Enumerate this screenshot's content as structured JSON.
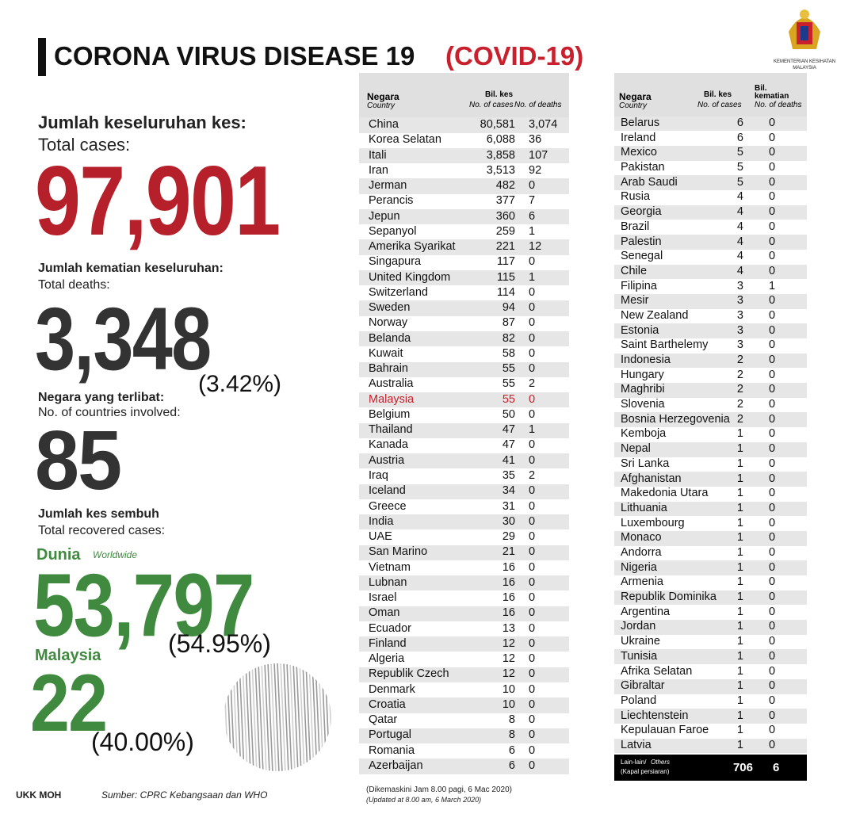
{
  "header": {
    "title": "CORONA VIRUS DISEASE 19",
    "title_highlight": "(COVID-19)",
    "ministry": [
      "KEMENTERIAN KESIHATAN",
      "MALAYSIA"
    ]
  },
  "total_cases": {
    "label_ms": "Jumlah keseluruhan kes:",
    "label_en": "Total cases:",
    "value": "97,901"
  },
  "total_deaths": {
    "label_ms": "Jumlah kematian keseluruhan:",
    "label_en": "Total deaths:",
    "value": "3,348",
    "percent": "(3.42%)"
  },
  "countries": {
    "label_ms": "Negara yang terlibat:",
    "label_en": "No. of countries involved:",
    "value": "85"
  },
  "recovered": {
    "label_ms": "Jumlah kes sembuh",
    "label_en": "Total recovered cases:",
    "world": {
      "label_ms": "Dunia",
      "label_en": "Worldwide",
      "value": "53,797",
      "percent": "(54.95%)"
    },
    "malaysia": {
      "label": "Malaysia",
      "value": "22",
      "percent": "(40.00%)"
    }
  },
  "tables": [
    {
      "header": {
        "country_ms": "Negara",
        "country_en": "Country",
        "cases_ms": "Bil. kes",
        "cases_en": "No. of cases",
        "deaths_en": "No. of deaths"
      },
      "highlight": {
        "row": 18,
        "color": "#c8202c"
      },
      "rows": [
        [
          "China",
          "80,581",
          "3,074"
        ],
        [
          "Korea Selatan",
          "6,088",
          "36"
        ],
        [
          "Itali",
          "3,858",
          "107"
        ],
        [
          "Iran",
          "3,513",
          "92"
        ],
        [
          "Jerman",
          "482",
          "0"
        ],
        [
          "Perancis",
          "377",
          "7"
        ],
        [
          "Jepun",
          "360",
          "6"
        ],
        [
          "Sepanyol",
          "259",
          "1"
        ],
        [
          "Amerika Syarikat",
          "221",
          "12"
        ],
        [
          "Singapura",
          "117",
          "0"
        ],
        [
          "United Kingdom",
          "115",
          "1"
        ],
        [
          "Switzerland",
          "114",
          "0"
        ],
        [
          "Sweden",
          "94",
          "0"
        ],
        [
          "Norway",
          "87",
          "0"
        ],
        [
          "Belanda",
          "82",
          "0"
        ],
        [
          "Kuwait",
          "58",
          "0"
        ],
        [
          "Bahrain",
          "55",
          "0"
        ],
        [
          "Australia",
          "55",
          "2"
        ],
        [
          "Malaysia",
          "55",
          "0"
        ],
        [
          "Belgium",
          "50",
          "0"
        ],
        [
          "Thailand",
          "47",
          "1"
        ],
        [
          "Kanada",
          "47",
          "0"
        ],
        [
          "Austria",
          "41",
          "0"
        ],
        [
          "Iraq",
          "35",
          "2"
        ],
        [
          "Iceland",
          "34",
          "0"
        ],
        [
          "Greece",
          "31",
          "0"
        ],
        [
          "India",
          "30",
          "0"
        ],
        [
          "UAE",
          "29",
          "0"
        ],
        [
          "San Marino",
          "21",
          "0"
        ],
        [
          "Vietnam",
          "16",
          "0"
        ],
        [
          "Lubnan",
          "16",
          "0"
        ],
        [
          "Israel",
          "16",
          "0"
        ],
        [
          "Oman",
          "16",
          "0"
        ],
        [
          "Ecuador",
          "13",
          "0"
        ],
        [
          "Finland",
          "12",
          "0"
        ],
        [
          "Algeria",
          "12",
          "0"
        ],
        [
          "Republik Czech",
          "12",
          "0"
        ],
        [
          "Denmark",
          "10",
          "0"
        ],
        [
          "Croatia",
          "10",
          "0"
        ],
        [
          "Qatar",
          "8",
          "0"
        ],
        [
          "Portugal",
          "8",
          "0"
        ],
        [
          "Romania",
          "6",
          "0"
        ],
        [
          "Azerbaijan",
          "6",
          "0"
        ]
      ]
    },
    {
      "header": {
        "country_ms": "Negara",
        "country_en": "Country",
        "cases_ms": "Bil. kes",
        "cases_en": "No. of cases",
        "deaths_ms": "Bil. kematian",
        "deaths_en": "No. of deaths"
      },
      "rows": [
        [
          "Belarus",
          "6",
          "0"
        ],
        [
          "Ireland",
          "6",
          "0"
        ],
        [
          "Mexico",
          "5",
          "0"
        ],
        [
          "Pakistan",
          "5",
          "0"
        ],
        [
          "Arab Saudi",
          "5",
          "0"
        ],
        [
          "Rusia",
          "4",
          "0"
        ],
        [
          "Georgia",
          "4",
          "0"
        ],
        [
          "Brazil",
          "4",
          "0"
        ],
        [
          "Palestin",
          "4",
          "0"
        ],
        [
          "Senegal",
          "4",
          "0"
        ],
        [
          "Chile",
          "4",
          "0"
        ],
        [
          "Filipina",
          "3",
          "1"
        ],
        [
          "Mesir",
          "3",
          "0"
        ],
        [
          "New Zealand",
          "3",
          "0"
        ],
        [
          "Estonia",
          "3",
          "0"
        ],
        [
          "Saint Barthelemy",
          "3",
          "0"
        ],
        [
          "Indonesia",
          "2",
          "0"
        ],
        [
          "Hungary",
          "2",
          "0"
        ],
        [
          "Maghribi",
          "2",
          "0"
        ],
        [
          "Slovenia",
          "2",
          "0"
        ],
        [
          "Bosnia Herzegovenia",
          "2",
          "0"
        ],
        [
          "Kemboja",
          "1",
          "0"
        ],
        [
          "Nepal",
          "1",
          "0"
        ],
        [
          "Sri Lanka",
          "1",
          "0"
        ],
        [
          "Afghanistan",
          "1",
          "0"
        ],
        [
          "Makedonia Utara",
          "1",
          "0"
        ],
        [
          "Lithuania",
          "1",
          "0"
        ],
        [
          "Luxembourg",
          "1",
          "0"
        ],
        [
          "Monaco",
          "1",
          "0"
        ],
        [
          "Andorra",
          "1",
          "0"
        ],
        [
          "Nigeria",
          "1",
          "0"
        ],
        [
          "Armenia",
          "1",
          "0"
        ],
        [
          "Republik Dominika",
          "1",
          "0"
        ],
        [
          "Argentina",
          "1",
          "0"
        ],
        [
          "Jordan",
          "1",
          "0"
        ],
        [
          "Ukraine",
          "1",
          "0"
        ],
        [
          "Tunisia",
          "1",
          "0"
        ],
        [
          "Afrika Selatan",
          "1",
          "0"
        ],
        [
          "Gibraltar",
          "1",
          "0"
        ],
        [
          "Poland",
          "1",
          "0"
        ],
        [
          "Liechtenstein",
          "1",
          "0"
        ],
        [
          "Kepulauan Faroe",
          "1",
          "0"
        ],
        [
          "Latvia",
          "1",
          "0"
        ]
      ],
      "others": {
        "label_ms": "Lain-lain/",
        "label_en": "Others",
        "note": "(Kapal persiaran)",
        "cases": "706",
        "deaths": "6"
      }
    }
  ],
  "footer": {
    "credit": "UKK MOH",
    "source": "Sumber: CPRC Kebangsaan dan WHO",
    "updated_ms": "(Dikemaskini  Jam 8.00 pagi, 6 Mac 2020)",
    "updated_en": "(Updated at 8.00 am, 6 March 2020)"
  }
}
